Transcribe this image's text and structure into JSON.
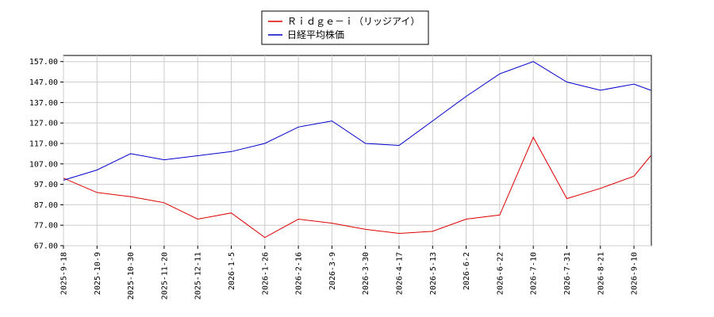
{
  "chart_data": {
    "type": "line",
    "title": "",
    "xlabel": "",
    "ylabel": "",
    "ylim": [
      67,
      160
    ],
    "grid": true,
    "legend_position": "top-center",
    "yticks": [
      "67.00",
      "77.00",
      "87.00",
      "97.00",
      "107.00",
      "117.00",
      "127.00",
      "137.00",
      "147.00",
      "157.00"
    ],
    "ytick_values": [
      67,
      77,
      87,
      97,
      107,
      117,
      127,
      137,
      147,
      157
    ],
    "xticks": [
      "2025-9-18",
      "2025-10-9",
      "2025-10-30",
      "2025-11-20",
      "2025-12-11",
      "2026-1-5",
      "2026-1-26",
      "2026-2-16",
      "2026-3-9",
      "2026-3-30",
      "2026-4-17",
      "2026-5-13",
      "2026-6-2",
      "2026-6-22",
      "2026-7-10",
      "2026-7-31",
      "2026-8-21",
      "2026-9-10"
    ],
    "series": [
      {
        "name": "Ｒｉｄｇｅ－ｉ（リッジアイ）",
        "color": "#dd0000",
        "x": [
          0,
          1,
          2,
          3,
          4,
          5,
          6,
          7,
          8,
          9,
          10,
          11,
          12,
          13,
          14,
          15,
          16,
          17,
          17.5
        ],
        "y": [
          100,
          93,
          91,
          88,
          80,
          83,
          71,
          80,
          78,
          75,
          73,
          74,
          80,
          82,
          120,
          90,
          95,
          101,
          111
        ]
      },
      {
        "name": "日経平均株価",
        "color": "#0000cc",
        "x": [
          0,
          1,
          2,
          3,
          4,
          5,
          6,
          7,
          8,
          9,
          10,
          11,
          12,
          13,
          14,
          15,
          16,
          17,
          17.5
        ],
        "y": [
          99,
          104,
          112,
          109,
          111,
          113,
          117,
          125,
          128,
          117,
          116,
          128,
          140,
          151,
          157,
          147,
          143,
          146,
          143
        ]
      }
    ]
  }
}
